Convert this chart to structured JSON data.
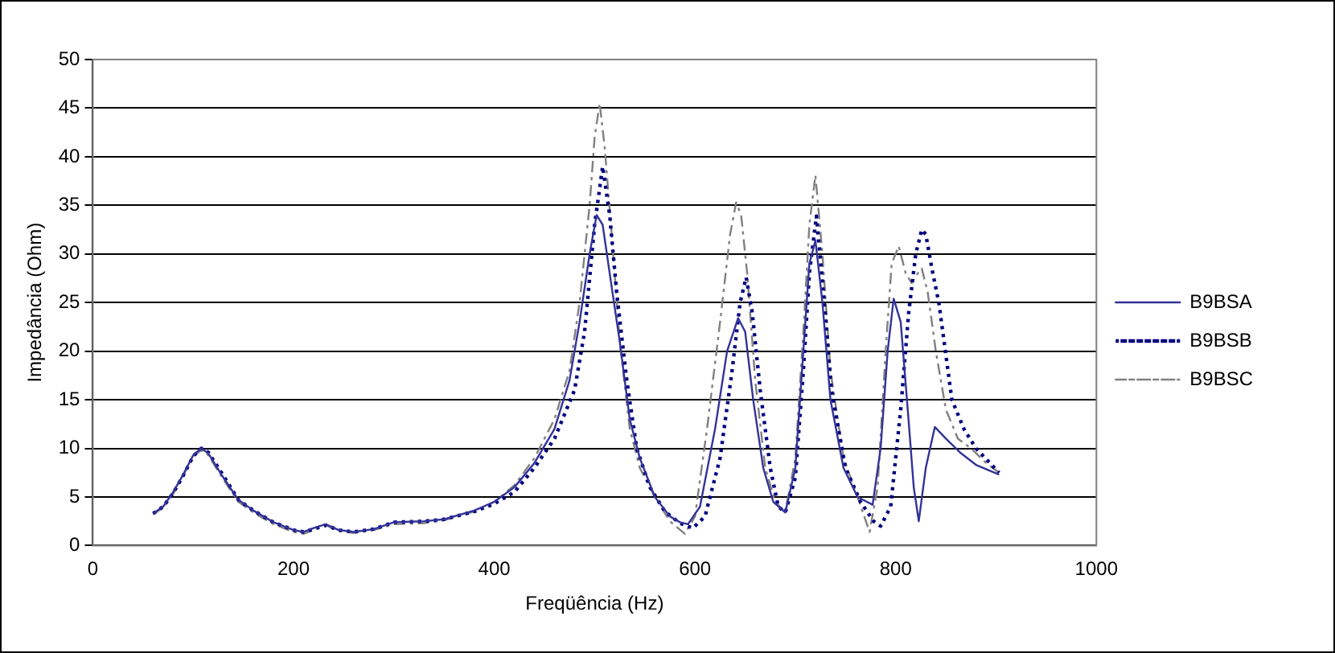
{
  "chart_data": {
    "type": "line",
    "xlabel": "Freqüência (Hz)",
    "ylabel": "Impedância (Ohm)",
    "xlim": [
      0,
      1000
    ],
    "xticks": [
      0,
      200,
      400,
      600,
      800,
      1000
    ],
    "ylim": [
      0,
      50
    ],
    "yticks": [
      0,
      5,
      10,
      15,
      20,
      25,
      30,
      35,
      40,
      45,
      50
    ],
    "grid": "y",
    "legend": "right",
    "marker": "none",
    "series": [
      {
        "name": "B9BSA",
        "color": "#333399",
        "line_style": "solid",
        "x": [
          60,
          70,
          80,
          90,
          100,
          108,
          115,
          130,
          145,
          160,
          180,
          200,
          210,
          220,
          232,
          245,
          260,
          280,
          300,
          330,
          350,
          380,
          400,
          420,
          440,
          460,
          475,
          485,
          495,
          502,
          508,
          515,
          525,
          535,
          545,
          560,
          575,
          585,
          593,
          605,
          620,
          632,
          643,
          650,
          658,
          668,
          678,
          690,
          700,
          708,
          714,
          720,
          727,
          735,
          748,
          762,
          777,
          785,
          792,
          798,
          805,
          812,
          818,
          823,
          830,
          839,
          850,
          865,
          880,
          903
        ],
        "values": [
          3.3,
          4,
          5.5,
          7.3,
          9.3,
          10,
          9.5,
          7,
          4.7,
          3.6,
          2.4,
          1.6,
          1.4,
          1.8,
          2.2,
          1.6,
          1.4,
          1.7,
          2.4,
          2.5,
          2.7,
          3.6,
          4.5,
          6,
          8.5,
          12,
          17,
          23,
          30,
          34,
          33,
          28,
          21,
          13,
          9,
          5,
          3,
          2.4,
          2.2,
          4,
          12,
          20,
          23.4,
          22,
          15,
          8,
          4.5,
          3.4,
          8,
          20,
          29,
          31.4,
          25,
          15,
          8,
          5,
          4.2,
          10,
          20,
          25.4,
          23,
          14,
          6,
          2.5,
          8,
          12.2,
          11,
          9.5,
          8.3,
          7.3
        ]
      },
      {
        "name": "B9BSB",
        "color": "#000080",
        "line_style": "dotted",
        "x": [
          60,
          70,
          80,
          90,
          100,
          108,
          115,
          130,
          145,
          160,
          180,
          200,
          210,
          220,
          232,
          245,
          260,
          280,
          300,
          330,
          350,
          380,
          400,
          420,
          440,
          460,
          480,
          490,
          500,
          508,
          515,
          522,
          532,
          542,
          555,
          570,
          585,
          598,
          610,
          625,
          637,
          645,
          651,
          657,
          665,
          675,
          683,
          690,
          700,
          708,
          714,
          721,
          728,
          736,
          750,
          765,
          778,
          785,
          795,
          805,
          813,
          820,
          826,
          830,
          837,
          843,
          856,
          868,
          880,
          903
        ],
        "values": [
          3.3,
          4,
          5.4,
          7.2,
          9.2,
          10,
          9.6,
          7.2,
          4.7,
          3.6,
          2.4,
          1.6,
          1.4,
          1.7,
          2.1,
          1.6,
          1.4,
          1.7,
          2.4,
          2.5,
          2.7,
          3.5,
          4.3,
          5.5,
          8,
          11,
          16,
          22,
          33,
          39,
          34,
          26,
          17,
          10,
          6,
          3.5,
          2.3,
          1.8,
          3,
          9,
          18,
          25,
          27.6,
          24,
          16,
          8,
          4,
          3.4,
          7,
          18,
          28,
          33.9,
          26,
          16,
          8,
          4.5,
          2.5,
          2,
          4,
          14,
          24,
          30,
          32.5,
          32,
          28,
          25,
          15,
          12,
          10,
          7.5
        ]
      },
      {
        "name": "B9BSC",
        "color": "#808080",
        "line_style": "dashed",
        "x": [
          60,
          70,
          80,
          90,
          100,
          108,
          115,
          130,
          145,
          160,
          180,
          200,
          210,
          220,
          232,
          245,
          260,
          280,
          300,
          330,
          350,
          380,
          400,
          420,
          440,
          460,
          475,
          485,
          495,
          500,
          505,
          510,
          517,
          525,
          535,
          545,
          560,
          575,
          590,
          600,
          612,
          625,
          635,
          641,
          646,
          652,
          660,
          670,
          680,
          690,
          700,
          708,
          714,
          720,
          727,
          735,
          748,
          762,
          774,
          782,
          790,
          796,
          803,
          810,
          816,
          822,
          826,
          832,
          840,
          850,
          862,
          875,
          890,
          903
        ],
        "values": [
          3.2,
          3.9,
          5.3,
          7.2,
          9.2,
          9.8,
          9.3,
          6.8,
          4.5,
          3.4,
          2.2,
          1.4,
          1.2,
          1.6,
          2.1,
          1.5,
          1.3,
          1.6,
          2.2,
          2.3,
          2.6,
          3.5,
          4.5,
          6.2,
          9,
          13,
          18,
          25,
          35,
          42,
          45.5,
          41,
          32,
          21,
          12,
          8,
          5,
          2.5,
          1.2,
          3,
          12,
          23,
          32,
          35.3,
          34,
          28,
          17,
          8,
          4.5,
          3.4,
          9,
          22,
          33,
          38.1,
          30,
          18,
          9,
          5,
          1.4,
          6,
          20,
          29,
          30.8,
          28,
          27,
          28,
          28.5,
          26,
          20,
          14,
          11,
          10,
          8.5,
          7.5
        ]
      }
    ]
  }
}
